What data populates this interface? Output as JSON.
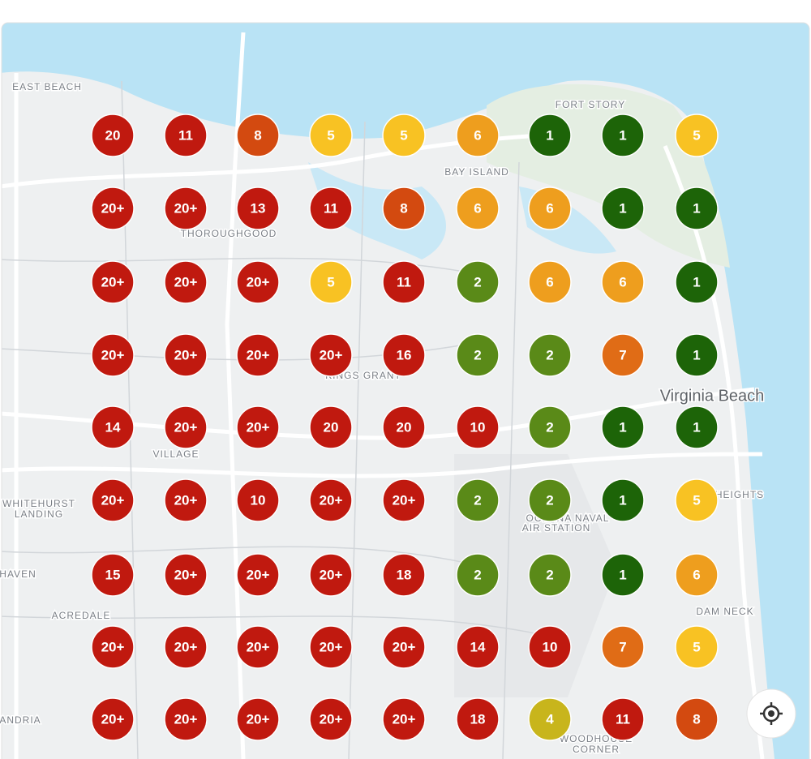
{
  "grid": {
    "rows": [
      [
        {
          "label": "20",
          "color": "#c0190f"
        },
        {
          "label": "11",
          "color": "#c0190f"
        },
        {
          "label": "8",
          "color": "#d34a10"
        },
        {
          "label": "5",
          "color": "#f8c223"
        },
        {
          "label": "5",
          "color": "#f8c223"
        },
        {
          "label": "6",
          "color": "#ee9e1e"
        },
        {
          "label": "1",
          "color": "#1d6408"
        },
        {
          "label": "1",
          "color": "#1d6408"
        },
        {
          "label": "5",
          "color": "#f8c223"
        }
      ],
      [
        {
          "label": "20+",
          "color": "#c0190f"
        },
        {
          "label": "20+",
          "color": "#c0190f"
        },
        {
          "label": "13",
          "color": "#c0190f"
        },
        {
          "label": "11",
          "color": "#c0190f"
        },
        {
          "label": "8",
          "color": "#d34a10"
        },
        {
          "label": "6",
          "color": "#ee9e1e"
        },
        {
          "label": "6",
          "color": "#ee9e1e"
        },
        {
          "label": "1",
          "color": "#1d6408"
        },
        {
          "label": "1",
          "color": "#1d6408"
        }
      ],
      [
        {
          "label": "20+",
          "color": "#c0190f"
        },
        {
          "label": "20+",
          "color": "#c0190f"
        },
        {
          "label": "20+",
          "color": "#c0190f"
        },
        {
          "label": "5",
          "color": "#f8c223"
        },
        {
          "label": "11",
          "color": "#c0190f"
        },
        {
          "label": "2",
          "color": "#5a8a18"
        },
        {
          "label": "6",
          "color": "#ee9e1e"
        },
        {
          "label": "6",
          "color": "#ee9e1e"
        },
        {
          "label": "1",
          "color": "#1d6408"
        }
      ],
      [
        {
          "label": "20+",
          "color": "#c0190f"
        },
        {
          "label": "20+",
          "color": "#c0190f"
        },
        {
          "label": "20+",
          "color": "#c0190f"
        },
        {
          "label": "20+",
          "color": "#c0190f"
        },
        {
          "label": "16",
          "color": "#c0190f"
        },
        {
          "label": "2",
          "color": "#5a8a18"
        },
        {
          "label": "2",
          "color": "#5a8a18"
        },
        {
          "label": "7",
          "color": "#e06c16"
        },
        {
          "label": "1",
          "color": "#1d6408"
        }
      ],
      [
        {
          "label": "14",
          "color": "#c0190f"
        },
        {
          "label": "20+",
          "color": "#c0190f"
        },
        {
          "label": "20+",
          "color": "#c0190f"
        },
        {
          "label": "20",
          "color": "#c0190f"
        },
        {
          "label": "20",
          "color": "#c0190f"
        },
        {
          "label": "10",
          "color": "#c0190f"
        },
        {
          "label": "2",
          "color": "#5a8a18"
        },
        {
          "label": "1",
          "color": "#1d6408"
        },
        {
          "label": "1",
          "color": "#1d6408"
        }
      ],
      [
        {
          "label": "20+",
          "color": "#c0190f"
        },
        {
          "label": "20+",
          "color": "#c0190f"
        },
        {
          "label": "10",
          "color": "#c0190f"
        },
        {
          "label": "20+",
          "color": "#c0190f"
        },
        {
          "label": "20+",
          "color": "#c0190f"
        },
        {
          "label": "2",
          "color": "#5a8a18"
        },
        {
          "label": "2",
          "color": "#5a8a18"
        },
        {
          "label": "1",
          "color": "#1d6408"
        },
        {
          "label": "5",
          "color": "#f8c223"
        }
      ],
      [
        {
          "label": "15",
          "color": "#c0190f"
        },
        {
          "label": "20+",
          "color": "#c0190f"
        },
        {
          "label": "20+",
          "color": "#c0190f"
        },
        {
          "label": "20+",
          "color": "#c0190f"
        },
        {
          "label": "18",
          "color": "#c0190f"
        },
        {
          "label": "2",
          "color": "#5a8a18"
        },
        {
          "label": "2",
          "color": "#5a8a18"
        },
        {
          "label": "1",
          "color": "#1d6408"
        },
        {
          "label": "6",
          "color": "#ee9e1e"
        }
      ],
      [
        {
          "label": "20+",
          "color": "#c0190f"
        },
        {
          "label": "20+",
          "color": "#c0190f"
        },
        {
          "label": "20+",
          "color": "#c0190f"
        },
        {
          "label": "20+",
          "color": "#c0190f"
        },
        {
          "label": "20+",
          "color": "#c0190f"
        },
        {
          "label": "14",
          "color": "#c0190f"
        },
        {
          "label": "10",
          "color": "#c0190f"
        },
        {
          "label": "7",
          "color": "#e06c16"
        },
        {
          "label": "5",
          "color": "#f8c223"
        }
      ],
      [
        {
          "label": "20+",
          "color": "#c0190f"
        },
        {
          "label": "20+",
          "color": "#c0190f"
        },
        {
          "label": "20+",
          "color": "#c0190f"
        },
        {
          "label": "20+",
          "color": "#c0190f"
        },
        {
          "label": "20+",
          "color": "#c0190f"
        },
        {
          "label": "18",
          "color": "#c0190f"
        },
        {
          "label": "4",
          "color": "#c8b51c"
        },
        {
          "label": "11",
          "color": "#c0190f"
        },
        {
          "label": "8",
          "color": "#d34a10"
        }
      ]
    ]
  },
  "map_labels": [
    "EAST BEACH",
    "FORT STORY",
    "BAY ISLAND",
    "THOROUGHGOOD",
    "KINGS GRANT",
    "Virginia Beach",
    "VILLAGE",
    "WHITEHURST",
    "LANDING",
    "ACREDALE",
    "OCEANA NAVAL",
    "AIR STATION",
    "DAM NECK",
    "WOODHOUSE",
    "CORNER",
    "HAVEN",
    "ANDRIA",
    "HEIGHTS"
  ]
}
